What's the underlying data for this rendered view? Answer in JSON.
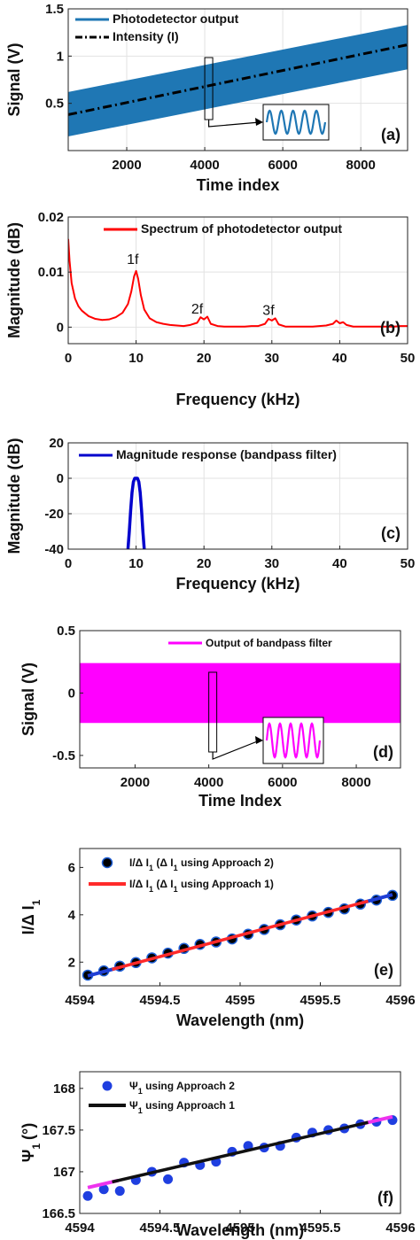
{
  "chart_data": [
    {
      "id": "a",
      "type": "line",
      "panel_label": "(a)",
      "xlabel": "Time index",
      "ylabel": "Signal (V)",
      "xlim": [
        500,
        9200
      ],
      "ylim": [
        0,
        1.5
      ],
      "xticks": [
        2000,
        4000,
        6000,
        8000
      ],
      "yticks": [
        0.5,
        1,
        1.5
      ],
      "ytick_labels": [
        "0.5",
        "1",
        "1.5"
      ],
      "grid": true,
      "legend_position": "top-left",
      "series": [
        {
          "name": "Photodetector output",
          "color": "#1f77b4",
          "band": true,
          "x": [
            500,
            9200
          ],
          "lower": [
            0.15,
            0.86
          ],
          "upper": [
            0.62,
            1.33
          ]
        },
        {
          "name": "Intensity (I)",
          "color": "#000000",
          "style": "dash-dot",
          "x": [
            500,
            9200
          ],
          "y": [
            0.38,
            1.12
          ]
        }
      ],
      "inset": {
        "color": "#1f77b4",
        "cycles": 5
      }
    },
    {
      "id": "b",
      "type": "line",
      "panel_label": "(b)",
      "xlabel": "Frequency (kHz)",
      "ylabel": "Magnitude (dB)",
      "xlim": [
        0,
        50
      ],
      "ylim": [
        -0.003,
        0.02
      ],
      "xticks": [
        0,
        10,
        20,
        30,
        40,
        50
      ],
      "yticks": [
        0,
        0.01,
        0.02
      ],
      "ytick_labels": [
        "0",
        "0.01",
        "0.02"
      ],
      "grid": true,
      "legend_position": "top-right",
      "annotations": [
        {
          "text": "1f",
          "x": 9.5,
          "y": 0.0115
        },
        {
          "text": "2f",
          "x": 19.0,
          "y": 0.0025
        },
        {
          "text": "3f",
          "x": 29.5,
          "y": 0.0022
        }
      ],
      "series": [
        {
          "name": "Spectrum of photodetector output",
          "color": "#ff0000",
          "x": [
            0,
            0.2,
            0.5,
            1,
            1.5,
            2,
            3,
            4,
            5,
            6,
            7,
            8,
            8.8,
            9.3,
            9.7,
            10,
            10.3,
            10.7,
            11.2,
            12,
            13,
            14,
            15,
            16,
            17,
            18,
            19,
            19.5,
            20,
            20.5,
            21,
            22,
            23,
            24,
            25,
            26,
            27,
            28,
            29,
            29.5,
            30,
            30.5,
            31,
            32,
            33,
            34,
            35,
            36,
            37,
            38,
            39,
            39.5,
            40,
            40.5,
            41,
            42,
            43,
            44,
            45,
            46,
            47,
            48,
            49,
            50
          ],
          "y": [
            0.016,
            0.012,
            0.008,
            0.0052,
            0.0038,
            0.003,
            0.002,
            0.0015,
            0.0013,
            0.0014,
            0.0018,
            0.0026,
            0.0042,
            0.0065,
            0.0092,
            0.0102,
            0.0088,
            0.0058,
            0.0032,
            0.0016,
            0.0009,
            0.0006,
            0.0004,
            0.0003,
            0.0002,
            0.0004,
            0.0008,
            0.0018,
            0.0014,
            0.0019,
            0.0006,
            0.0002,
            0.0001,
            0.0001,
            0.0001,
            0.0001,
            0.0002,
            0.0002,
            0.0006,
            0.0015,
            0.0012,
            0.0016,
            0.0005,
            0.0001,
            0.0001,
            0.0001,
            0.0001,
            0.0001,
            0.0002,
            0.0003,
            0.0006,
            0.0012,
            0.0007,
            0.0009,
            0.0004,
            0.0001,
            0.0001,
            0.0001,
            0.0001,
            0.0001,
            0.0001,
            0.0001,
            0.0002,
            0.0002
          ]
        }
      ]
    },
    {
      "id": "c",
      "type": "line",
      "panel_label": "(c)",
      "xlabel": "Frequency (kHz)",
      "ylabel": "Magnitude (dB)",
      "xlim": [
        0,
        50
      ],
      "ylim": [
        -40,
        20
      ],
      "xticks": [
        0,
        10,
        20,
        30,
        40,
        50
      ],
      "yticks": [
        -40,
        -20,
        0,
        20
      ],
      "ytick_labels": [
        "-40",
        "-20",
        "0",
        "20"
      ],
      "grid": true,
      "legend_position": "top-right",
      "series": [
        {
          "name": "Magnitude response (bandpass filter)",
          "color": "#0000cc",
          "x": [
            8.8,
            9.0,
            9.2,
            9.4,
            9.6,
            9.8,
            10.0,
            10.2,
            10.4,
            10.6,
            10.8,
            11.0,
            11.2
          ],
          "y": [
            -40,
            -30,
            -18,
            -8,
            -2,
            0,
            0,
            0,
            -2,
            -8,
            -18,
            -30,
            -40
          ]
        }
      ]
    },
    {
      "id": "d",
      "type": "line",
      "panel_label": "(d)",
      "xlabel": "Time Index",
      "ylabel": "Signal (V)",
      "xlim": [
        500,
        9200
      ],
      "ylim": [
        -0.6,
        0.5
      ],
      "xticks": [
        2000,
        4000,
        6000,
        8000
      ],
      "yticks": [
        -0.5,
        0,
        0.5
      ],
      "ytick_labels": [
        "-0.5",
        "0",
        "0.5"
      ],
      "grid": false,
      "legend_position": "top-right",
      "series": [
        {
          "name": "Output of bandpass filter",
          "color": "#ff00ff",
          "band": true,
          "x": [
            500,
            9200
          ],
          "lower": [
            -0.24,
            -0.24
          ],
          "upper": [
            0.24,
            0.24
          ]
        }
      ],
      "inset": {
        "color": "#ff00ff",
        "cycles": 5
      }
    },
    {
      "id": "e",
      "type": "scatter",
      "panel_label": "(e)",
      "xlabel": "Wavelength (nm)",
      "ylabel": "I/Δ I",
      "ylabel_sub": "1",
      "xlim": [
        4594,
        4596
      ],
      "ylim": [
        1,
        6.8
      ],
      "xticks": [
        4594,
        4594.5,
        4595,
        4595.5,
        4596
      ],
      "xtick_labels": [
        "4594",
        "4594.5",
        "4595",
        "4595.5",
        "4596"
      ],
      "yticks": [
        2,
        4,
        6
      ],
      "ytick_labels": [
        "2",
        "4",
        "6"
      ],
      "grid": false,
      "legend_position": "top-right",
      "series": [
        {
          "name": "I/Δ I",
          "name_sub": "1",
          "name_rest": " (Δ I",
          "name_sub2": "1",
          "name_end": " using Approach 2)",
          "color": "#000000",
          "marker": "circle-blue-edge",
          "x": [
            4594.05,
            4594.15,
            4594.25,
            4594.35,
            4594.45,
            4594.55,
            4594.65,
            4594.75,
            4594.85,
            4594.95,
            4595.05,
            4595.15,
            4595.25,
            4595.35,
            4595.45,
            4595.55,
            4595.65,
            4595.75,
            4595.85,
            4595.95
          ],
          "y": [
            1.45,
            1.63,
            1.83,
            1.98,
            2.18,
            2.38,
            2.58,
            2.75,
            2.85,
            2.98,
            3.18,
            3.38,
            3.58,
            3.78,
            3.95,
            4.1,
            4.25,
            4.45,
            4.62,
            4.82
          ]
        },
        {
          "name": "I/Δ I",
          "name_sub": "1",
          "name_rest": " (Δ I",
          "name_sub2": "1",
          "name_end": " using Approach 1)",
          "color": "#ff2a2a",
          "style": "line",
          "tail_color": "#1f3fd6",
          "x": [
            4594.05,
            4595.95
          ],
          "y": [
            1.42,
            4.85
          ]
        }
      ]
    },
    {
      "id": "f",
      "type": "scatter",
      "panel_label": "(f)",
      "xlabel": "Wavelength (nm)",
      "ylabel": "Ψ",
      "ylabel_sub": "1",
      "ylabel_unit": "(°)",
      "xlim": [
        4594,
        4596
      ],
      "ylim": [
        166.5,
        168.2
      ],
      "xticks": [
        4594,
        4594.5,
        4595,
        4595.5,
        4596
      ],
      "xtick_labels": [
        "4594",
        "4594.5",
        "4595",
        "4595.5",
        "4596"
      ],
      "yticks": [
        166.5,
        167,
        167.5,
        168
      ],
      "ytick_labels": [
        "166.5",
        "167",
        "167.5",
        "168"
      ],
      "grid": false,
      "legend_position": "top-right",
      "series": [
        {
          "name": "Ψ",
          "name_sub": "1",
          "name_end": " using Approach 2",
          "color": "#1f3fe0",
          "marker": "circle",
          "x": [
            4594.05,
            4594.15,
            4594.25,
            4594.35,
            4594.45,
            4594.55,
            4594.65,
            4594.75,
            4594.85,
            4594.95,
            4595.05,
            4595.15,
            4595.25,
            4595.35,
            4595.45,
            4595.55,
            4595.65,
            4595.75,
            4595.85,
            4595.95
          ],
          "y": [
            166.71,
            166.79,
            166.77,
            166.9,
            167.0,
            166.91,
            167.11,
            167.08,
            167.12,
            167.24,
            167.31,
            167.29,
            167.31,
            167.41,
            167.47,
            167.5,
            167.52,
            167.57,
            167.6,
            167.62
          ]
        },
        {
          "name": "Ψ",
          "name_sub": "1",
          "name_end": " using Approach 1",
          "color": "#111111",
          "style": "line",
          "tail_color": "#ee33ee",
          "x": [
            4594.05,
            4595.95
          ],
          "y": [
            166.81,
            167.66
          ]
        }
      ]
    }
  ]
}
